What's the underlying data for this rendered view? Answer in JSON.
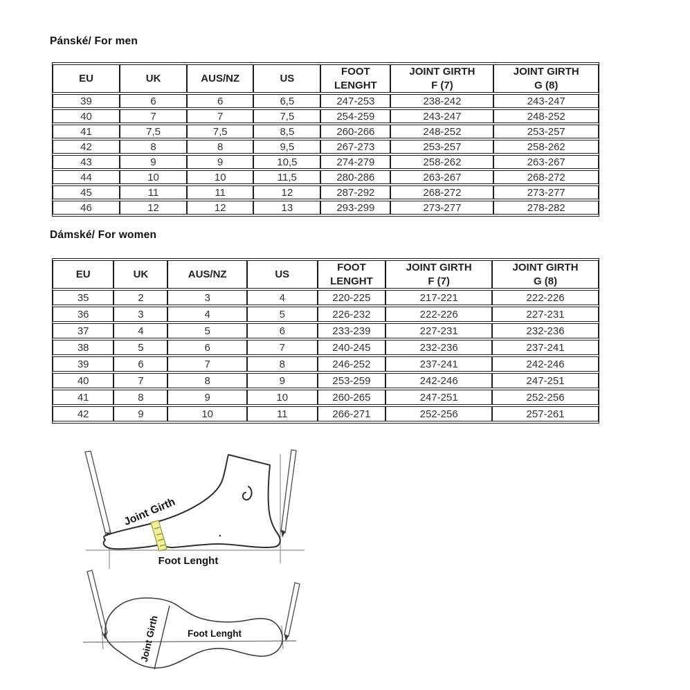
{
  "sections": {
    "men": {
      "title": "Pánské/ For men"
    },
    "women": {
      "title": "Dámské/ For women"
    }
  },
  "tables": {
    "men": {
      "headers": [
        "EU",
        "UK",
        "AUS/NZ",
        "US",
        "FOOT\nLENGHT",
        "JOINT GIRTH\nF (7)",
        "JOINT GIRTH\nG (8)"
      ],
      "rows": [
        [
          "39",
          "6",
          "6",
          "6,5",
          "247-253",
          "238-242",
          "243-247"
        ],
        [
          "40",
          "7",
          "7",
          "7,5",
          "254-259",
          "243-247",
          "248-252"
        ],
        [
          "41",
          "7,5",
          "7,5",
          "8,5",
          "260-266",
          "248-252",
          "253-257"
        ],
        [
          "42",
          "8",
          "8",
          "9,5",
          "267-273",
          "253-257",
          "258-262"
        ],
        [
          "43",
          "9",
          "9",
          "10,5",
          "274-279",
          "258-262",
          "263-267"
        ],
        [
          "44",
          "10",
          "10",
          "11,5",
          "280-286",
          "263-267",
          "268-272"
        ],
        [
          "45",
          "11",
          "11",
          "12",
          "287-292",
          "268-272",
          "273-277"
        ],
        [
          "46",
          "12",
          "12",
          "13",
          "293-299",
          "273-277",
          "278-282"
        ]
      ]
    },
    "women": {
      "headers": [
        "EU",
        "UK",
        "AUS/NZ",
        "US",
        "FOOT\nLENGHT",
        "JOINT GIRTH\nF (7)",
        "JOINT GIRTH\nG (8)"
      ],
      "rows": [
        [
          "35",
          "2",
          "3",
          "4",
          "220-225",
          "217-221",
          "222-226"
        ],
        [
          "36",
          "3",
          "4",
          "5",
          "226-232",
          "222-226",
          "227-231"
        ],
        [
          "37",
          "4",
          "5",
          "6",
          "233-239",
          "227-231",
          "232-236"
        ],
        [
          "38",
          "5",
          "6",
          "7",
          "240-245",
          "232-236",
          "237-241"
        ],
        [
          "39",
          "6",
          "7",
          "8",
          "246-252",
          "237-241",
          "242-246"
        ],
        [
          "40",
          "7",
          "8",
          "9",
          "253-259",
          "242-246",
          "247-251"
        ],
        [
          "41",
          "8",
          "9",
          "10",
          "260-265",
          "247-251",
          "252-256"
        ],
        [
          "42",
          "9",
          "10",
          "11",
          "266-271",
          "252-256",
          "257-261"
        ]
      ]
    }
  },
  "diagrams": {
    "side_view": {
      "joint_girth_label": "Joint Girth",
      "foot_length_label": "Foot Lenght",
      "tape_color": "#f0f09e"
    },
    "top_view": {
      "joint_girth_label": "Joint Girth",
      "foot_length_label": "Foot Lenght"
    }
  },
  "colors": {
    "table_border": "#1a1a1a",
    "table_text": "#333333",
    "title_text": "#111111",
    "outline": "#2e2e2e",
    "guide_gray": "#8f8f8f"
  }
}
